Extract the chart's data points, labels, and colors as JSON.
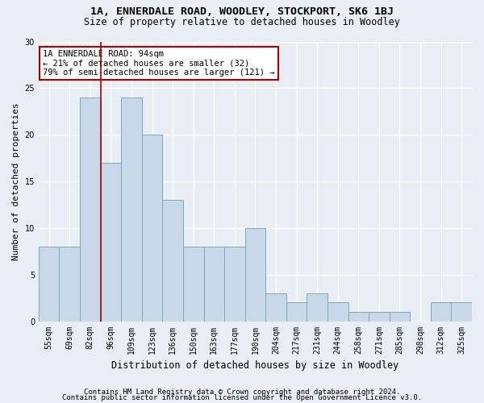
{
  "title1": "1A, ENNERDALE ROAD, WOODLEY, STOCKPORT, SK6 1BJ",
  "title2": "Size of property relative to detached houses in Woodley",
  "xlabel": "Distribution of detached houses by size in Woodley",
  "ylabel": "Number of detached properties",
  "categories": [
    "55sqm",
    "69sqm",
    "82sqm",
    "96sqm",
    "109sqm",
    "123sqm",
    "136sqm",
    "150sqm",
    "163sqm",
    "177sqm",
    "190sqm",
    "204sqm",
    "217sqm",
    "231sqm",
    "244sqm",
    "258sqm",
    "271sqm",
    "285sqm",
    "298sqm",
    "312sqm",
    "325sqm"
  ],
  "values": [
    8,
    8,
    24,
    17,
    24,
    20,
    13,
    8,
    8,
    8,
    10,
    3,
    2,
    3,
    2,
    1,
    1,
    1,
    0,
    2,
    2
  ],
  "bar_color": "#c8d8e8",
  "bar_edge_color": "#7aaabb",
  "vline_color": "#aa0000",
  "vline_x": 2.5,
  "ylim": [
    0,
    30
  ],
  "yticks": [
    0,
    5,
    10,
    15,
    20,
    25,
    30
  ],
  "annotation_text": "1A ENNERDALE ROAD: 94sqm\n← 21% of detached houses are smaller (32)\n79% of semi-detached houses are larger (121) →",
  "annotation_box_color": "#ffffff",
  "annotation_box_edge": "#aa0000",
  "footer1": "Contains HM Land Registry data © Crown copyright and database right 2024.",
  "footer2": "Contains public sector information licensed under the Open Government Licence v3.0.",
  "background_color": "#e8eef4",
  "grid_color": "#ffffff",
  "title1_fontsize": 9.5,
  "title2_fontsize": 8.5,
  "xlabel_fontsize": 8.5,
  "ylabel_fontsize": 8,
  "tick_fontsize": 7,
  "annotation_fontsize": 7.5,
  "footer_fontsize": 6.5
}
